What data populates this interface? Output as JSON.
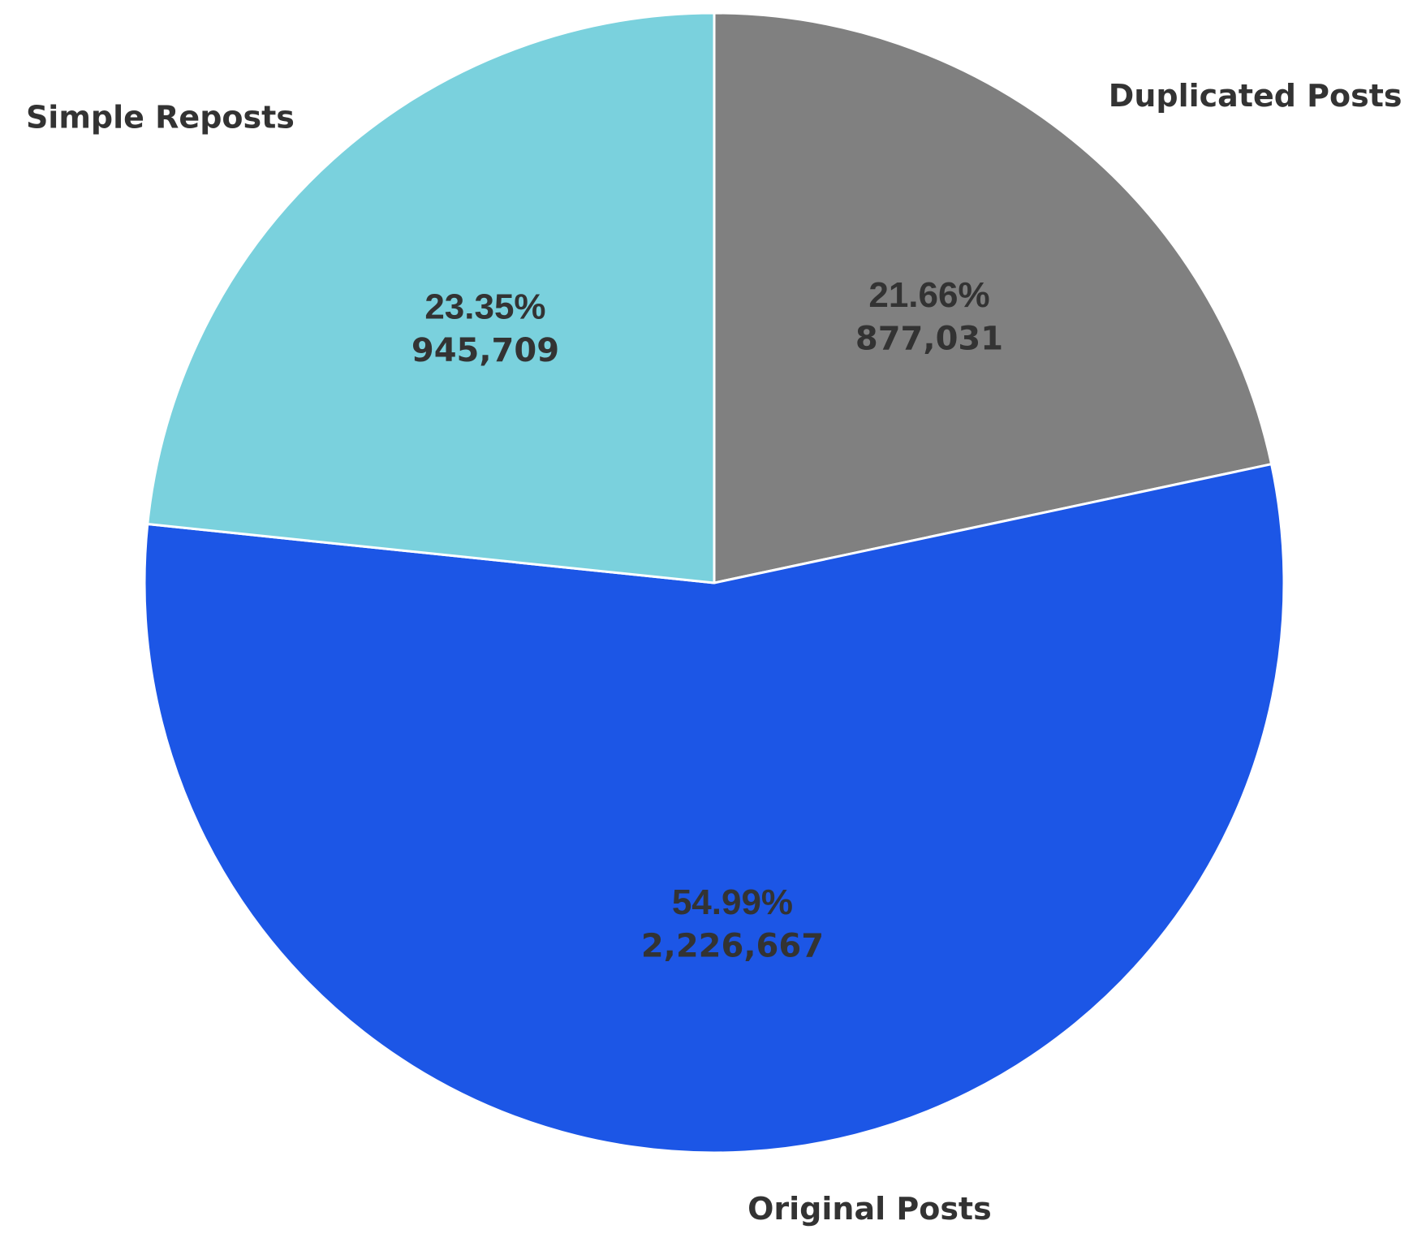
{
  "chart_data": {
    "type": "pie",
    "title": "",
    "start_angle_deg": 90,
    "direction": "clockwise",
    "edge_color": "#ffffff",
    "slices": [
      {
        "label": "Duplicated Posts",
        "value": 877031,
        "value_label": "877,031",
        "percent": 21.66,
        "percent_label": "21.66%",
        "color": "#808080"
      },
      {
        "label": "Original Posts",
        "value": 2226667,
        "value_label": "2,226,667",
        "percent": 54.99,
        "percent_label": "54.99%",
        "color": "#1c56e6"
      },
      {
        "label": "Simple Reposts",
        "value": 945709,
        "value_label": "945,709",
        "percent": 23.35,
        "percent_label": "23.35%",
        "color": "#7ad1dd"
      }
    ]
  }
}
